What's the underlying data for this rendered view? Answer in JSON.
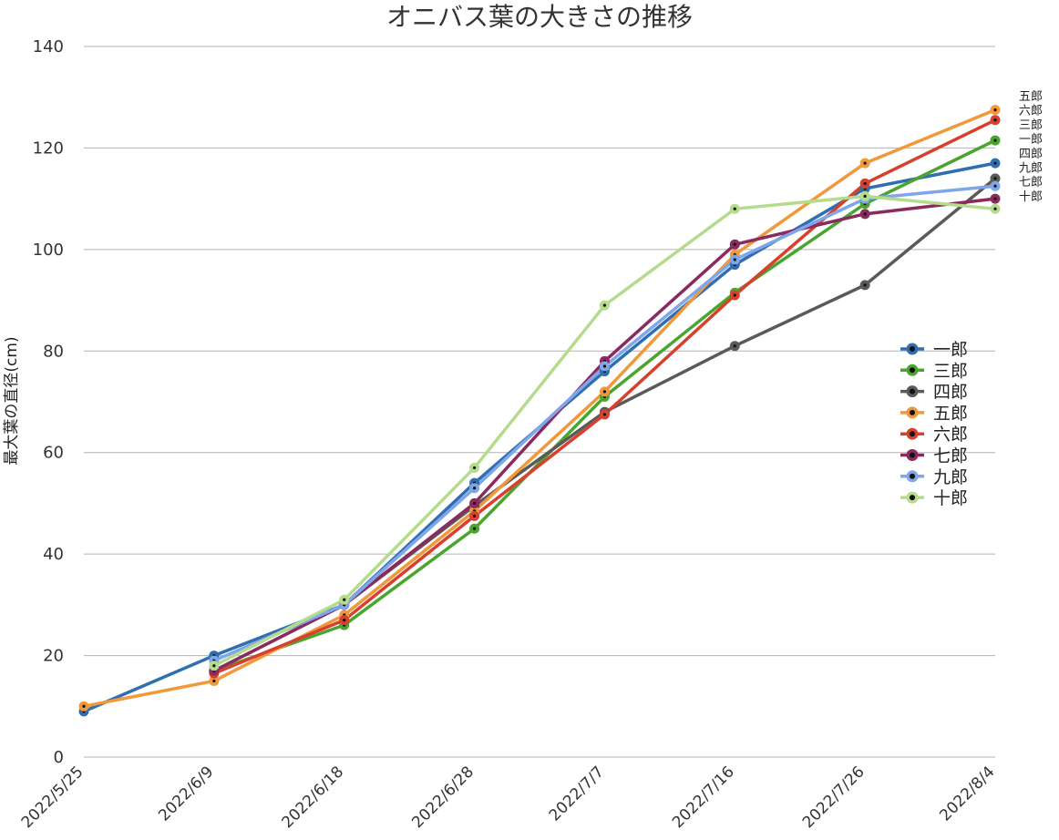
{
  "chart_data": {
    "type": "line",
    "title": "オニバス葉の大きさの推移",
    "xlabel": "",
    "ylabel": "最大葉の直径(cm)",
    "categories": [
      "2022/5/25",
      "2022/6/9",
      "2022/6/18",
      "2022/6/28",
      "2022/7/7",
      "2022/7/16",
      "2022/7/26",
      "2022/8/4"
    ],
    "ylim": [
      0,
      140
    ],
    "yticks": [
      0,
      20,
      40,
      60,
      80,
      100,
      120,
      140
    ],
    "grid": true,
    "legend_position": "right",
    "series": [
      {
        "name": "一郎",
        "color": "#2f6fb0",
        "values": [
          9,
          20,
          30,
          54,
          76,
          97,
          112,
          117
        ]
      },
      {
        "name": "三郎",
        "color": "#4aa52e",
        "values": [
          null,
          17,
          26,
          45,
          71,
          91.5,
          109,
          121.5
        ]
      },
      {
        "name": "四郎",
        "color": "#5a5a5a",
        "values": [
          null,
          17,
          30,
          49.5,
          68,
          81,
          93,
          114
        ]
      },
      {
        "name": "五郎",
        "color": "#f0983a",
        "values": [
          10,
          15,
          28,
          48.5,
          72,
          99,
          117,
          127.5
        ]
      },
      {
        "name": "六郎",
        "color": "#d8402e",
        "values": [
          null,
          16.5,
          27,
          47.5,
          67.5,
          91,
          113,
          125.5
        ]
      },
      {
        "name": "七郎",
        "color": "#8b2a5e",
        "values": [
          null,
          17,
          30,
          50,
          78,
          101,
          107,
          110
        ]
      },
      {
        "name": "九郎",
        "color": "#7fa6ea",
        "values": [
          null,
          19,
          30,
          53,
          77,
          98,
          110,
          112.5
        ]
      },
      {
        "name": "十郎",
        "color": "#b4dc8c",
        "values": [
          null,
          18,
          31,
          57,
          89,
          108,
          110.5,
          108
        ]
      }
    ],
    "end_labels": [
      "五郎",
      "六郎",
      "三郎",
      "一郎",
      "四郎",
      "九郎",
      "七郎",
      "十郎"
    ]
  }
}
